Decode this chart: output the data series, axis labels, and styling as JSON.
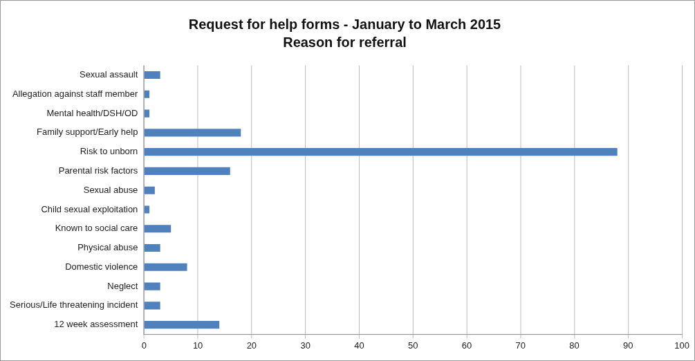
{
  "chart_data": {
    "type": "bar",
    "orientation": "horizontal",
    "title": "Request for help forms - January to March 2015",
    "subtitle": "Reason for referral",
    "categories": [
      "Sexual assault",
      "Allegation against staff member",
      "Mental health/DSH/OD",
      "Family support/Early help",
      "Risk to unborn",
      "Parental risk factors",
      "Sexual abuse",
      "Child sexual exploitation",
      "Known to social care",
      "Physical abuse",
      "Domestic violence",
      "Neglect",
      "Serious/Life threatening incident",
      "12 week assessment"
    ],
    "values": [
      3,
      1,
      1,
      18,
      88,
      16,
      2,
      1,
      5,
      3,
      8,
      3,
      3,
      14
    ],
    "color": "#4f81bd",
    "xlim": [
      0,
      100
    ],
    "xticks": [
      0,
      10,
      20,
      30,
      40,
      50,
      60,
      70,
      80,
      90,
      100
    ],
    "grid": "x",
    "legend": false
  }
}
